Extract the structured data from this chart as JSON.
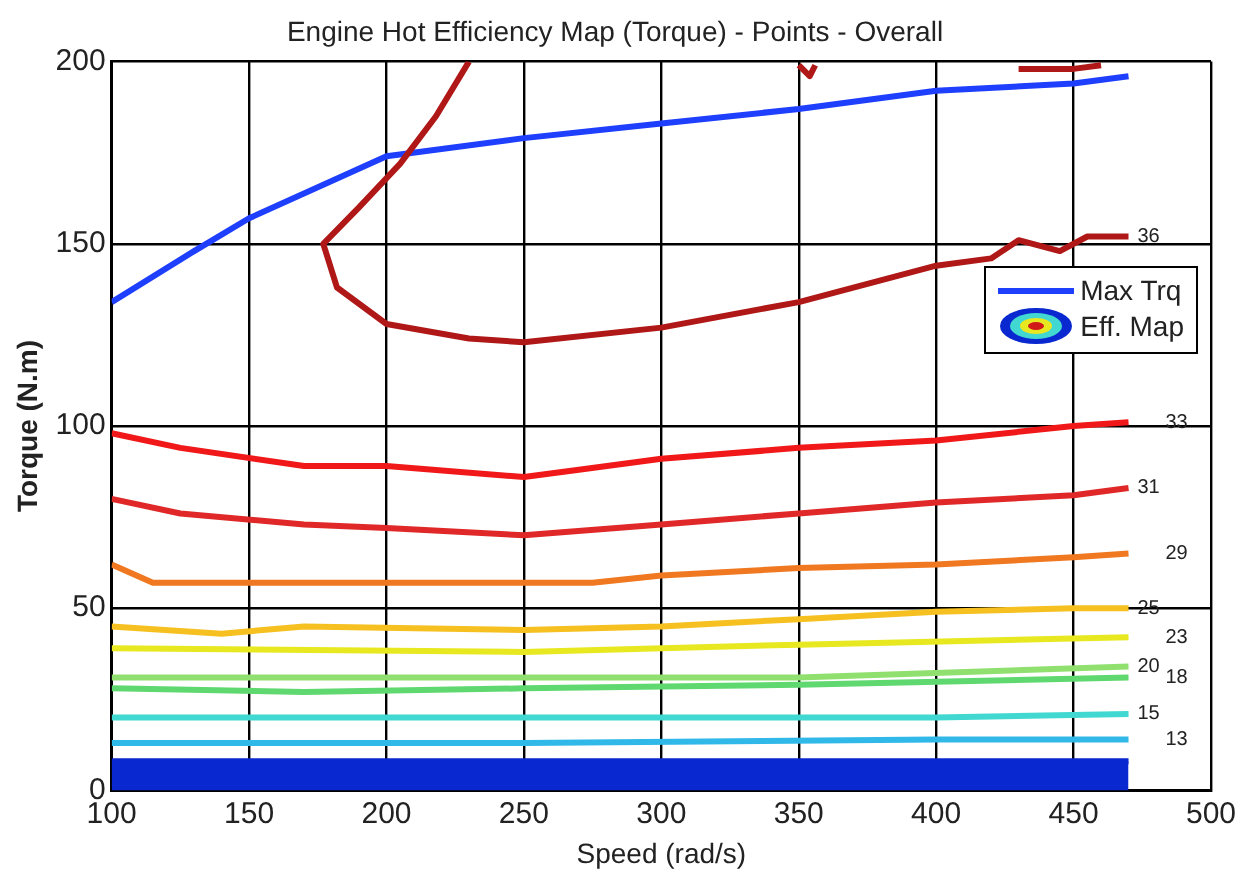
{
  "chart_data": {
    "type": "line",
    "title": "Engine Hot Efficiency Map (Torque) - Points - Overall",
    "xlabel": "Speed (rad/s)",
    "ylabel": "Torque (N.m)",
    "xlim": [
      100,
      500
    ],
    "xticks": [
      100,
      150,
      200,
      250,
      300,
      350,
      400,
      450,
      500
    ],
    "ylim": [
      0,
      200
    ],
    "yticks": [
      0,
      50,
      100,
      150,
      200
    ],
    "grid": true,
    "legend": "right",
    "annotations": [
      "Eff. Map"
    ],
    "series": [
      {
        "type": "area",
        "color": "#0a28d0",
        "x": [
          100,
          470
        ],
        "values": [
          8,
          8
        ]
      },
      {
        "name": "13",
        "color": "#30b8e8",
        "x": [
          100,
          250,
          400,
          470
        ],
        "values": [
          13,
          13,
          14,
          14
        ]
      },
      {
        "name": "15",
        "color": "#40d8d0",
        "x": [
          100,
          250,
          400,
          470
        ],
        "values": [
          20,
          20,
          20,
          21
        ]
      },
      {
        "name": "18",
        "color": "#60d870",
        "x": [
          100,
          170,
          250,
          350,
          470
        ],
        "values": [
          28,
          27,
          28,
          29,
          31
        ]
      },
      {
        "name": "20",
        "color": "#90e070",
        "x": [
          100,
          250,
          350,
          470
        ],
        "values": [
          31,
          31,
          31,
          34
        ]
      },
      {
        "name": "23",
        "color": "#e8e820",
        "x": [
          100,
          250,
          350,
          470
        ],
        "values": [
          39,
          38,
          40,
          42
        ]
      },
      {
        "name": "25",
        "color": "#f5c020",
        "x": [
          100,
          140,
          170,
          250,
          300,
          350,
          400,
          450,
          470
        ],
        "values": [
          45,
          43,
          45,
          44,
          45,
          47,
          49,
          50,
          50
        ]
      },
      {
        "name": "29",
        "color": "#f07820",
        "x": [
          100,
          115,
          150,
          200,
          250,
          275,
          300,
          350,
          400,
          450,
          470
        ],
        "values": [
          62,
          57,
          57,
          57,
          57,
          57,
          59,
          61,
          62,
          64,
          65
        ]
      },
      {
        "name": "31",
        "color": "#e02828",
        "x": [
          100,
          125,
          170,
          200,
          250,
          300,
          350,
          400,
          450,
          470
        ],
        "values": [
          80,
          76,
          73,
          72,
          70,
          73,
          76,
          79,
          81,
          83
        ]
      },
      {
        "name": "33",
        "color": "#f01818",
        "x": [
          100,
          125,
          170,
          200,
          250,
          270,
          300,
          350,
          400,
          450,
          470
        ],
        "values": [
          98,
          94,
          89,
          89,
          86,
          88,
          91,
          94,
          96,
          100,
          101
        ]
      },
      {
        "name": "36",
        "color": "#b01818",
        "x": [
          230,
          218,
          205,
          190,
          177,
          182,
          200,
          230,
          250,
          300,
          350,
          400,
          420,
          430,
          445,
          455,
          470
        ],
        "values": [
          200,
          185,
          172,
          160,
          150,
          138,
          128,
          124,
          123,
          127,
          134,
          144,
          146,
          151,
          148,
          152,
          152
        ]
      },
      {
        "color": "#b01818",
        "x": [
          350,
          354,
          356
        ],
        "values": [
          199,
          196,
          199
        ]
      },
      {
        "color": "#b01818",
        "x": [
          430,
          450,
          460
        ],
        "values": [
          198,
          198,
          199
        ]
      },
      {
        "name": "Max Trq",
        "color": "#1f3fff",
        "x": [
          100,
          130,
          150,
          200,
          250,
          300,
          350,
          400,
          450,
          470
        ],
        "values": [
          134,
          148,
          157,
          174,
          179,
          183,
          187,
          192,
          194,
          196
        ]
      }
    ]
  }
}
